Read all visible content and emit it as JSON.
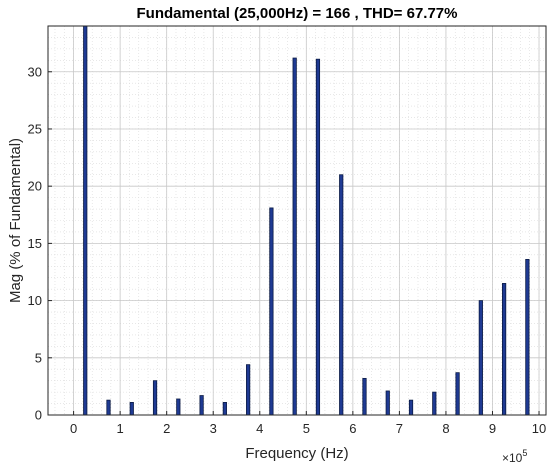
{
  "chart_data": {
    "type": "bar",
    "title": "Fundamental (25,000Hz) = 166 , THD= 67.77%",
    "xlabel": "Frequency (Hz)",
    "ylabel": "Mag (% of Fundamental)",
    "x_multiplier_label": "×10",
    "x_multiplier_exp": "5",
    "xlim": [
      -0.55,
      10.15
    ],
    "ylim": [
      0,
      34
    ],
    "x_ticks": [
      0,
      1,
      2,
      3,
      4,
      5,
      6,
      7,
      8,
      9,
      10
    ],
    "y_ticks": [
      0,
      5,
      10,
      15,
      20,
      25,
      30
    ],
    "grid": true,
    "minor_grid": true,
    "bar_color": "#1f3a93",
    "bar_edge_color": "#0a1a44",
    "bars": [
      {
        "x": 0.25,
        "y": 34
      },
      {
        "x": 0.75,
        "y": 1.3
      },
      {
        "x": 1.25,
        "y": 1.1
      },
      {
        "x": 1.75,
        "y": 3.0
      },
      {
        "x": 2.25,
        "y": 1.4
      },
      {
        "x": 2.75,
        "y": 1.7
      },
      {
        "x": 3.25,
        "y": 1.1
      },
      {
        "x": 3.75,
        "y": 4.4
      },
      {
        "x": 4.25,
        "y": 18.1
      },
      {
        "x": 4.75,
        "y": 31.2
      },
      {
        "x": 5.25,
        "y": 31.1
      },
      {
        "x": 5.75,
        "y": 21.0
      },
      {
        "x": 6.25,
        "y": 3.2
      },
      {
        "x": 6.75,
        "y": 2.1
      },
      {
        "x": 7.25,
        "y": 1.3
      },
      {
        "x": 7.75,
        "y": 2.0
      },
      {
        "x": 8.25,
        "y": 3.7
      },
      {
        "x": 8.75,
        "y": 10.0
      },
      {
        "x": 9.25,
        "y": 11.5
      },
      {
        "x": 9.75,
        "y": 13.6
      }
    ]
  }
}
